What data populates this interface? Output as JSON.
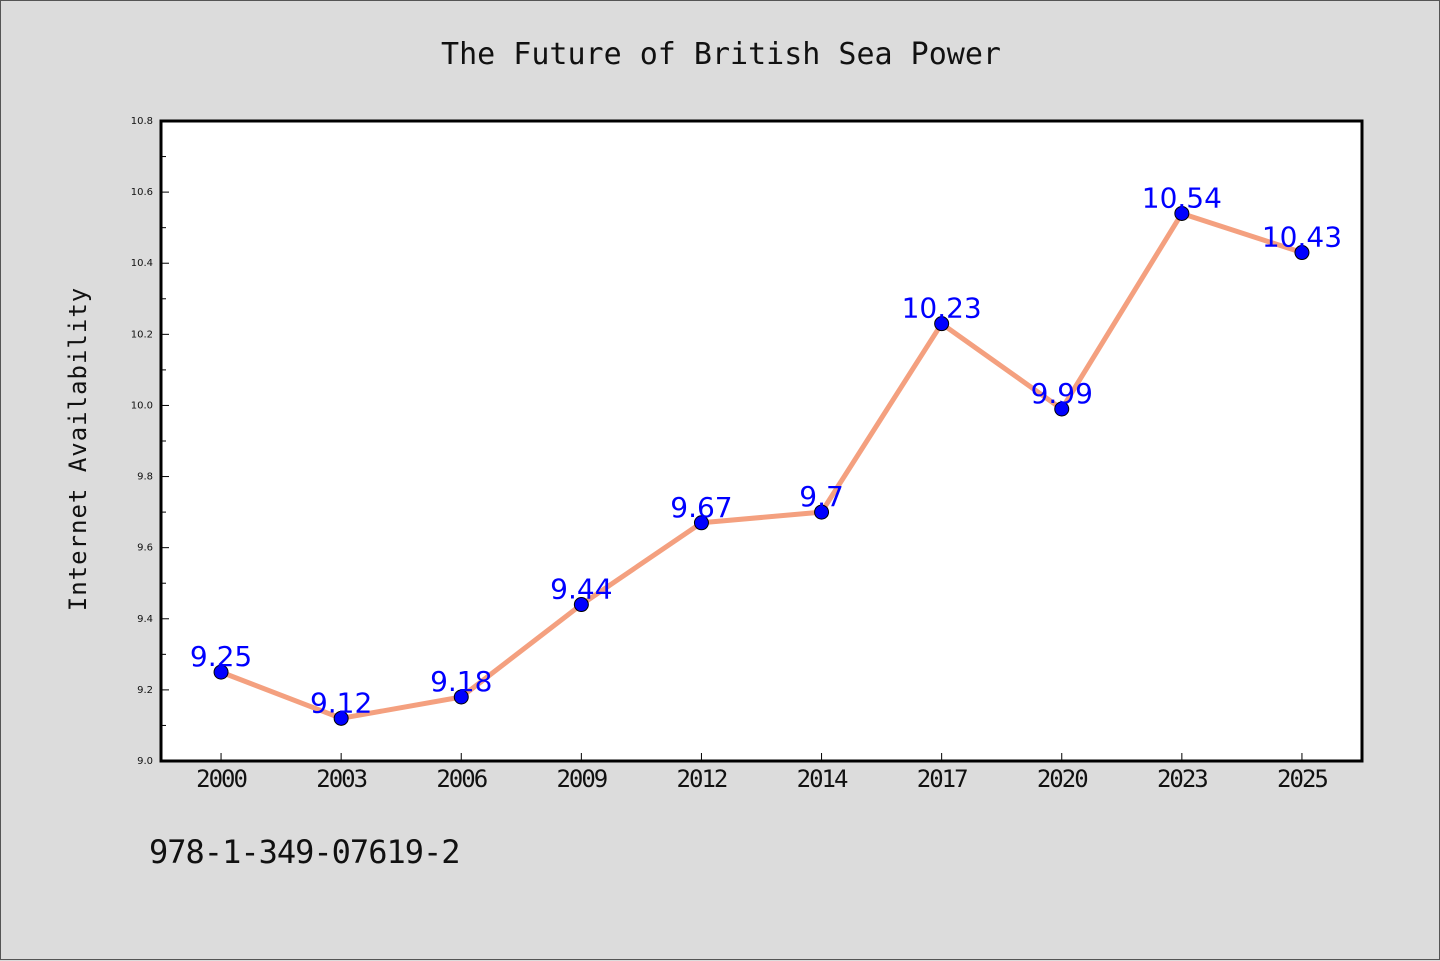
{
  "chart_data": {
    "type": "line",
    "title": "The Future of British Sea Power",
    "xlabel": "",
    "ylabel": "Internet Availability",
    "categories": [
      "2000",
      "2003",
      "2006",
      "2009",
      "2012",
      "2014",
      "2017",
      "2020",
      "2023",
      "2025"
    ],
    "series": [
      {
        "values": [
          9.25,
          9.12,
          9.18,
          9.44,
          9.67,
          9.7,
          10.23,
          9.99,
          10.54,
          10.43
        ],
        "labels": [
          "9.25",
          "9.12",
          "9.18",
          "9.44",
          "9.67",
          "9.7",
          "10.23",
          "9.99",
          "10.54",
          "10.43"
        ],
        "line_color": "#f4a07f",
        "marker_color": "#0000ff",
        "label_color": "#0000ff"
      }
    ],
    "ylim": [
      9.0,
      10.8
    ],
    "yticks": [
      "9.0",
      "9.2",
      "9.4",
      "9.6",
      "9.8",
      "10.0",
      "10.2",
      "10.4",
      "10.6",
      "10.8"
    ],
    "grid": false,
    "legend": "none"
  },
  "footnote": "978-1-349-07619-2",
  "colors": {
    "background": "#dcdcdc",
    "plot_background": "#ffffff",
    "axis": "#000000"
  }
}
